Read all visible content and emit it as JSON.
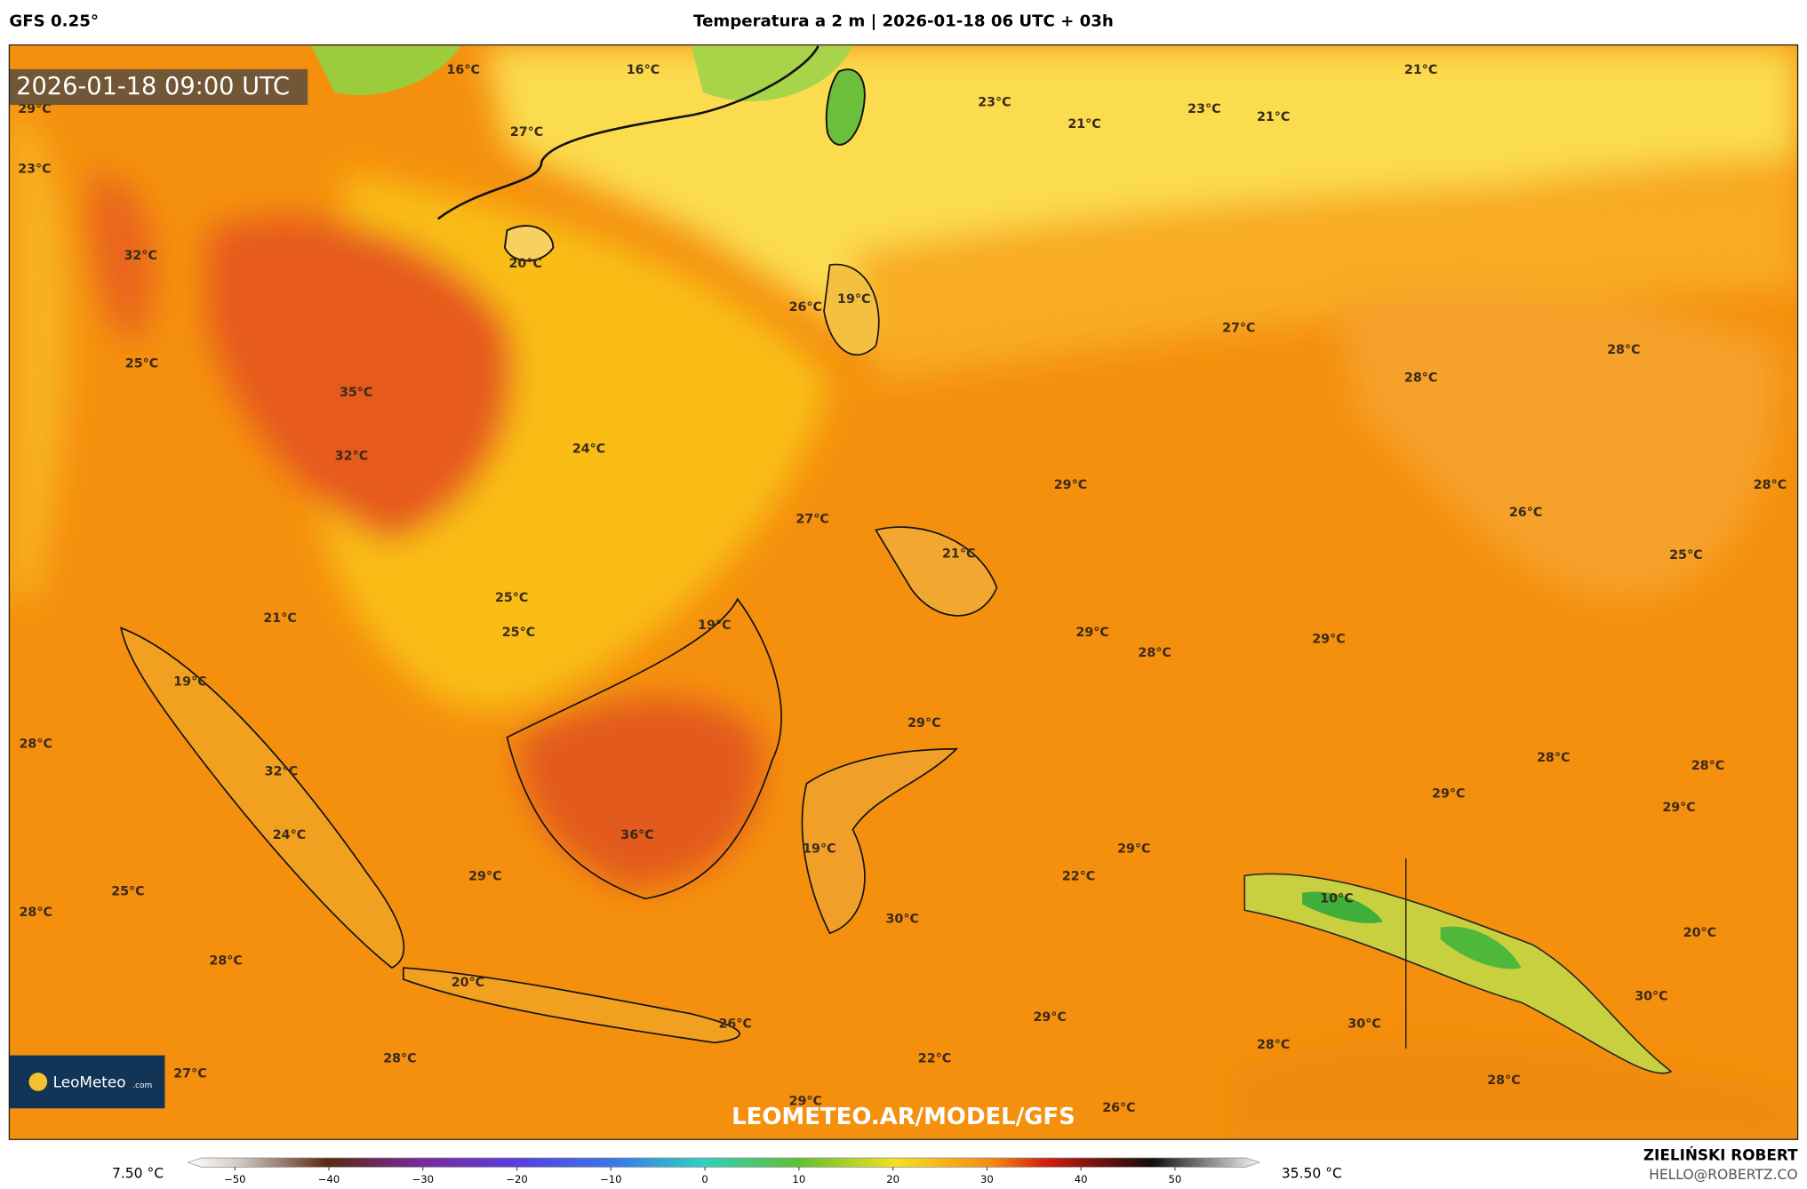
{
  "header": {
    "model": "GFS 0.25°",
    "title": "Temperatura a 2 m | 2026-01-18 06 UTC + 03h"
  },
  "map": {
    "valid_time": "2026-01-18 09:00 UTC",
    "watermark": "LEOMETEO.AR/MODEL/GFS",
    "logo": {
      "name": "LeoMeteo",
      "suffix": ".com"
    },
    "labels": [
      "16°C",
      "16°C",
      "27°C",
      "29°C",
      "23°C",
      "32°C",
      "20°C",
      "23°C",
      "21°C",
      "23°C",
      "21°C",
      "21°C",
      "26°C",
      "19°C",
      "27°C",
      "28°C",
      "28°C",
      "25°C",
      "35°C",
      "32°C",
      "24°C",
      "29°C",
      "28°C",
      "27°C",
      "26°C",
      "21°C",
      "25°C",
      "25°C",
      "25°C",
      "21°C",
      "19°C",
      "29°C",
      "29°C",
      "28°C",
      "19°C",
      "29°C",
      "28°C",
      "32°C",
      "28°C",
      "28°C",
      "29°C",
      "29°C",
      "24°C",
      "36°C",
      "19°C",
      "29°C",
      "22°C",
      "29°C",
      "10°C",
      "25°C",
      "28°C",
      "30°C",
      "20°C",
      "28°C",
      "20°C",
      "30°C",
      "29°C",
      "26°C",
      "30°C",
      "28°C",
      "22°C",
      "28°C",
      "27°C",
      "28°C",
      "29°C",
      "26°C"
    ]
  },
  "colorbar": {
    "lim": [
      -55,
      59
    ],
    "min_label": "7.50 °C",
    "max_label": "35.50 °C",
    "ticks": [
      {
        "value": -50,
        "label": "−50"
      },
      {
        "value": -40,
        "label": "−40"
      },
      {
        "value": -30,
        "label": "−30"
      },
      {
        "value": -20,
        "label": "−20"
      },
      {
        "value": -10,
        "label": "−10"
      },
      0,
      10,
      20,
      30,
      40,
      50
    ]
  },
  "footer": {
    "author": "ZIELIŃSKI ROBERT",
    "email": "HELLO@ROBERTZ.CO"
  }
}
